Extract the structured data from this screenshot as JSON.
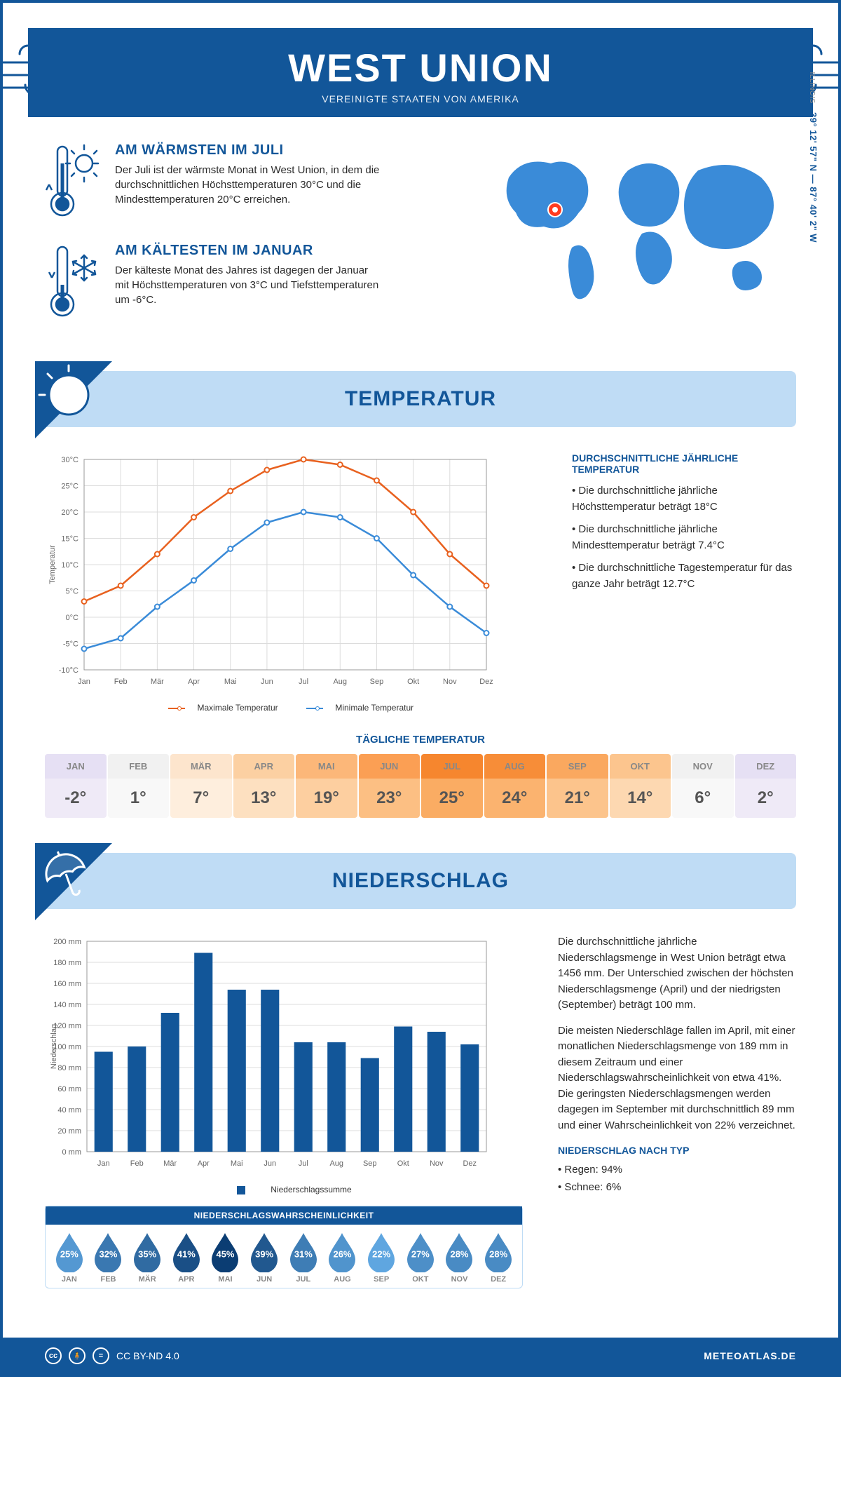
{
  "header": {
    "title": "WEST UNION",
    "subtitle": "VEREINIGTE STAATEN VON AMERIKA"
  },
  "intro": {
    "warm": {
      "title": "AM WÄRMSTEN IM JULI",
      "body": "Der Juli ist der wärmste Monat in West Union, in dem die durchschnittlichen Höchsttemperaturen 30°C und die Mindesttemperaturen 20°C erreichen."
    },
    "cold": {
      "title": "AM KÄLTESTEN IM JANUAR",
      "body": "Der kälteste Monat des Jahres ist dagegen der Januar mit Höchsttemperaturen von 3°C und Tiefsttemperaturen um -6°C."
    },
    "coords": "39° 12' 57\" N — 87° 40' 2\" W",
    "region": "ILLINOIS"
  },
  "temperature": {
    "section_title": "TEMPERATUR",
    "chart": {
      "months": [
        "Jan",
        "Feb",
        "Mär",
        "Apr",
        "Mai",
        "Jun",
        "Jul",
        "Aug",
        "Sep",
        "Okt",
        "Nov",
        "Dez"
      ],
      "y_min": -10,
      "y_max": 30,
      "y_step": 5,
      "y_unit": "°C",
      "y_label": "Temperatur",
      "series": {
        "max": {
          "label": "Maximale Temperatur",
          "color": "#e8611f",
          "values": [
            3,
            6,
            12,
            19,
            24,
            28,
            30,
            29,
            26,
            20,
            12,
            6
          ]
        },
        "min": {
          "label": "Minimale Temperatur",
          "color": "#3a8bd8",
          "values": [
            -6,
            -4,
            2,
            7,
            13,
            18,
            20,
            19,
            15,
            8,
            2,
            -3
          ]
        }
      },
      "grid_color": "#dcdcdc",
      "background": "#ffffff"
    },
    "aside": {
      "heading": "DURCHSCHNITTLICHE JÄHRLICHE TEMPERATUR",
      "bullets": [
        "• Die durchschnittliche jährliche Höchsttemperatur beträgt 18°C",
        "• Die durchschnittliche jährliche Mindesttemperatur beträgt 7.4°C",
        "• Die durchschnittliche Tagestemperatur für das ganze Jahr beträgt 12.7°C"
      ]
    },
    "daily": {
      "title": "TÄGLICHE TEMPERATUR",
      "months": [
        "JAN",
        "FEB",
        "MÄR",
        "APR",
        "MAI",
        "JUN",
        "JUL",
        "AUG",
        "SEP",
        "OKT",
        "NOV",
        "DEZ"
      ],
      "values": [
        "-2°",
        "1°",
        "7°",
        "13°",
        "19°",
        "23°",
        "25°",
        "24°",
        "21°",
        "14°",
        "6°",
        "2°"
      ],
      "heat_colors_top": [
        "#e6e0f4",
        "#f1f1f1",
        "#fde5cd",
        "#fcd0a2",
        "#fcb779",
        "#fb9f54",
        "#f6862e",
        "#f78d38",
        "#faa85f",
        "#fcc58e",
        "#f1f1f1",
        "#e6e0f4"
      ],
      "heat_colors_bot": [
        "#efeaf7",
        "#f8f8f8",
        "#feeedd",
        "#fde0c0",
        "#fdcfa0",
        "#fcbf83",
        "#faac63",
        "#fbb36f",
        "#fcc48c",
        "#fdd8b1",
        "#f8f8f8",
        "#efeaf7"
      ]
    }
  },
  "precip": {
    "section_title": "NIEDERSCHLAG",
    "chart": {
      "months": [
        "Jan",
        "Feb",
        "Mär",
        "Apr",
        "Mai",
        "Jun",
        "Jul",
        "Aug",
        "Sep",
        "Okt",
        "Nov",
        "Dez"
      ],
      "y_min": 0,
      "y_max": 200,
      "y_step": 20,
      "y_unit": " mm",
      "y_label": "Niederschlag",
      "bar_color": "#125699",
      "values": [
        95,
        100,
        132,
        189,
        154,
        154,
        104,
        104,
        89,
        119,
        114,
        102
      ],
      "legend_label": "Niederschlagssumme"
    },
    "aside": {
      "p1": "Die durchschnittliche jährliche Niederschlagsmenge in West Union beträgt etwa 1456 mm. Der Unterschied zwischen der höchsten Niederschlagsmenge (April) und der niedrigsten (September) beträgt 100 mm.",
      "p2": "Die meisten Niederschläge fallen im April, mit einer monatlichen Niederschlagsmenge von 189 mm in diesem Zeitraum und einer Niederschlagswahrscheinlichkeit von etwa 41%. Die geringsten Niederschlagsmengen werden dagegen im September mit durchschnittlich 89 mm und einer Wahrscheinlichkeit von 22% verzeichnet.",
      "type_heading": "NIEDERSCHLAG NACH TYP",
      "type_bullets": [
        "• Regen: 94%",
        "• Schnee: 6%"
      ]
    },
    "probability": {
      "title": "NIEDERSCHLAGSWAHRSCHEINLICHKEIT",
      "months": [
        "JAN",
        "FEB",
        "MÄR",
        "APR",
        "MAI",
        "JUN",
        "JUL",
        "AUG",
        "SEP",
        "OKT",
        "NOV",
        "DEZ"
      ],
      "values": [
        25,
        32,
        35,
        41,
        45,
        39,
        31,
        26,
        22,
        27,
        28,
        28
      ],
      "color_scale": {
        "min_color": "#5fa6e0",
        "max_color": "#0b3d73"
      }
    }
  },
  "footer": {
    "license": "CC BY-ND 4.0",
    "site": "METEOATLAS.DE"
  },
  "palette": {
    "brand": "#125699",
    "light_band": "#bfdcf5"
  }
}
